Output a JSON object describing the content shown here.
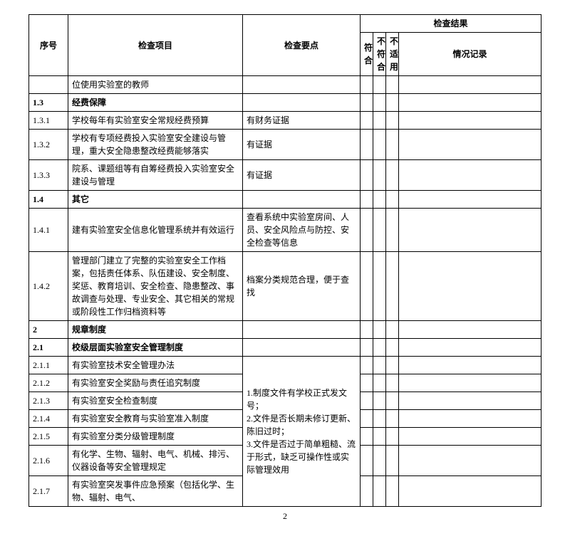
{
  "header": {
    "no": "序号",
    "item": "检查项目",
    "key": "检查要点",
    "result": "检查结果",
    "c1": "符合",
    "c2": "不符合",
    "c3": "不适用",
    "rec": "情况记录"
  },
  "rows": [
    {
      "no": "",
      "item": "位使用实验室的教师",
      "key": "",
      "bold": false
    },
    {
      "no": "1.3",
      "item": "经费保障",
      "key": "",
      "bold": true
    },
    {
      "no": "1.3.1",
      "item": "学校每年有实验室安全常规经费预算",
      "key": "有财务证据",
      "bold": false
    },
    {
      "no": "1.3.2",
      "item": "学校有专项经费投入实验室安全建设与管理，重大安全隐患整改经费能够落实",
      "key": "有证据",
      "bold": false
    },
    {
      "no": "1.3.3",
      "item": "院系、课题组等有自筹经费投入实验室安全建设与管理",
      "key": "有证据",
      "bold": false
    },
    {
      "no": "1.4",
      "item": "其它",
      "key": "",
      "bold": true
    },
    {
      "no": "1.4.1",
      "item": "建有实验室安全信息化管理系统并有效运行",
      "key": "查看系统中实验室房间、人员、安全风险点与防控、安全检查等信息",
      "bold": false
    },
    {
      "no": "1.4.2",
      "item": "管理部门建立了完整的实验室安全工作档案，包括责任体系、队伍建设、安全制度、奖惩、教育培训、安全检查、隐患整改、事故调查与处理、专业安全、其它相关的常规或阶段性工作归档资料等",
      "key": "档案分类规范合理，便于查找",
      "bold": false
    },
    {
      "no": "2",
      "item": "规章制度",
      "key": "",
      "bold": true
    },
    {
      "no": "2.1",
      "item": "校级层面实验室安全管理制度",
      "key": "",
      "bold": true
    }
  ],
  "group2": {
    "key": "1.制度文件有学校正式发文号；\n2.文件是否长期未修订更新、陈旧过时；\n3.文件是否过于简单粗糙、流于形式，缺乏可操作性或实际管理效用",
    "items": [
      {
        "no": "2.1.1",
        "item": "有实验室技术安全管理办法"
      },
      {
        "no": "2.1.2",
        "item": "有实验室安全奖励与责任追究制度"
      },
      {
        "no": "2.1.3",
        "item": "有实验室安全检查制度"
      },
      {
        "no": "2.1.4",
        "item": "有实验室安全教育与实验室准入制度"
      },
      {
        "no": "2.1.5",
        "item": "有实验室分类分级管理制度"
      },
      {
        "no": "2.1.6",
        "item": "有化学、生物、辐射、电气、机械、排污、仪器设备等安全管理规定"
      },
      {
        "no": "2.1.7",
        "item": "有实验室突发事件应急预案（包括化学、生物、辐射、电气、"
      }
    ]
  },
  "pageNumber": "2"
}
